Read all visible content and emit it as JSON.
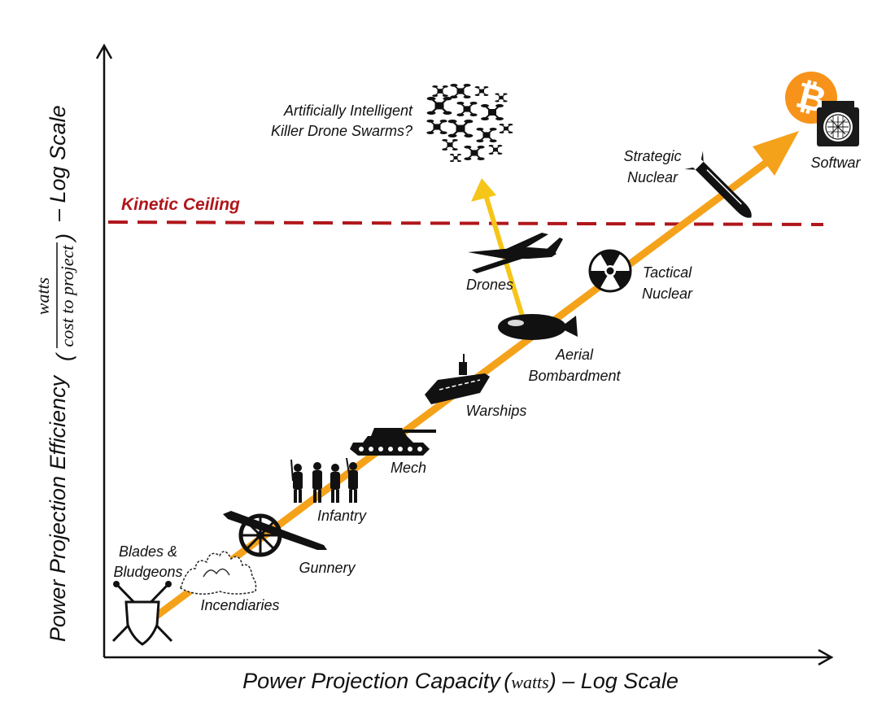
{
  "axes": {
    "x_title": "Power Projection Capacity",
    "x_unit": "watts",
    "x_suffix": "– Log Scale",
    "y_title": "Power Projection Efficiency",
    "y_unit_num": "watts",
    "y_unit_den": "cost to project",
    "y_suffix": "– Log Scale"
  },
  "kinetic_ceiling": "Kinetic Ceiling",
  "labels": {
    "blades": [
      "Blades &",
      "Bludgeons"
    ],
    "incendiaries": "Incendiaries",
    "gunnery": "Gunnery",
    "infantry": "Infantry",
    "mech": "Mech",
    "warships": "Warships",
    "aerial": [
      "Aerial",
      "Bombardment"
    ],
    "drones": "Drones",
    "tactical": [
      "Tactical",
      "Nuclear"
    ],
    "strategic": [
      "Strategic",
      "Nuclear"
    ],
    "softwar": "Softwar",
    "swarms": [
      "Artificially Intelligent",
      "Killer Drone Swarms?"
    ]
  },
  "colors": {
    "trend_arrow": "#f5a21b",
    "branch_arrow": "#f5c518",
    "ceiling": "#b0161b",
    "bitcoin": "#f7931a"
  },
  "icons": [
    "shield-swords-icon",
    "fire-icon",
    "cannon-icon",
    "soldiers-icon",
    "tank-icon",
    "aircraft-carrier-icon",
    "bomb-icon",
    "radiation-icon",
    "drone-icon",
    "missile-icon",
    "drone-swarm-icon",
    "bitcoin-icon",
    "asic-miner-icon"
  ]
}
